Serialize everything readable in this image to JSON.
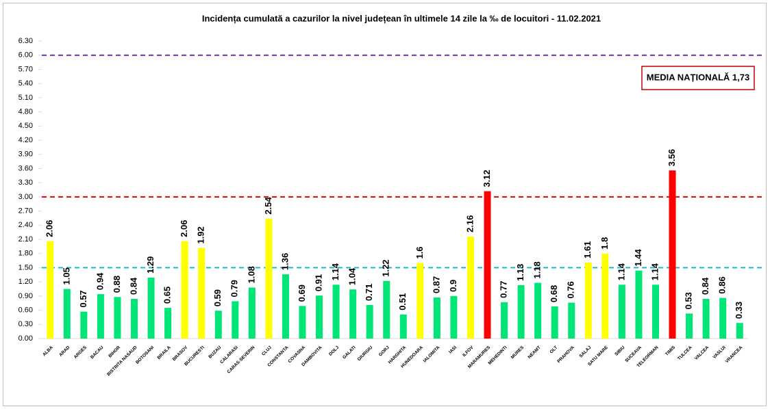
{
  "chart_data": {
    "type": "bar",
    "title": "Incidența cumulată a cazurilor la nivel județean în ultimele 14 zile la ‰ de locuitori - 11.02.2021",
    "categories": [
      "ALBA",
      "ARAD",
      "ARGES",
      "BACAU",
      "BIHOR",
      "BISTRITA NASAUD",
      "BOTOSANI",
      "BRAILA",
      "BRASOV",
      "BUCURESTI",
      "BUZAU",
      "CALARASI",
      "CARAS-SEVERIN",
      "CLUJ",
      "CONSTANTA",
      "COVASNA",
      "DAMBOVITA",
      "DOLJ",
      "GALATI",
      "GIURGIU",
      "GORJ",
      "HARGHITA",
      "HUNEDOARA",
      "IALOMITA",
      "IASI",
      "ILFOV",
      "MARAMURES",
      "MEHEDINTI",
      "MURES",
      "NEAMT",
      "OLT",
      "PRAHOVA",
      "SALAJ",
      "SATU MARE",
      "SIBIU",
      "SUCEAVA",
      "TELEORMAN",
      "TIMIS",
      "TULCEA",
      "VALCEA",
      "VASLUI",
      "VRANCEA"
    ],
    "values": [
      2.06,
      1.05,
      0.57,
      0.94,
      0.88,
      0.84,
      1.29,
      0.65,
      2.06,
      1.92,
      0.59,
      0.79,
      1.08,
      2.54,
      1.36,
      0.69,
      0.91,
      1.14,
      1.04,
      0.71,
      1.22,
      0.51,
      1.6,
      0.87,
      0.9,
      2.16,
      3.12,
      0.77,
      1.13,
      1.18,
      0.68,
      0.76,
      1.61,
      1.8,
      1.14,
      1.44,
      1.14,
      3.56,
      0.53,
      0.84,
      0.86,
      0.33
    ],
    "colors": [
      "#ffff00",
      "#00e676",
      "#00e676",
      "#00e676",
      "#00e676",
      "#00e676",
      "#00e676",
      "#00e676",
      "#ffff00",
      "#ffff00",
      "#00e676",
      "#00e676",
      "#00e676",
      "#ffff00",
      "#00e676",
      "#00e676",
      "#00e676",
      "#00e676",
      "#00e676",
      "#00e676",
      "#00e676",
      "#00e676",
      "#ffff00",
      "#00e676",
      "#00e676",
      "#ffff00",
      "#ff0000",
      "#00e676",
      "#00e676",
      "#00e676",
      "#00e676",
      "#00e676",
      "#ffff00",
      "#ffff00",
      "#00e676",
      "#00e676",
      "#00e676",
      "#ff0000",
      "#00e676",
      "#00e676",
      "#00e676",
      "#00e676"
    ],
    "ylim": [
      0,
      6.3
    ],
    "yticks": [
      {
        "value": 0,
        "label": "0.00"
      },
      {
        "value": 0.3,
        "label": "0.30"
      },
      {
        "value": 0.6,
        "label": "0.60"
      },
      {
        "value": 0.9,
        "label": "0.90"
      },
      {
        "value": 1.2,
        "label": "1.20"
      },
      {
        "value": 1.5,
        "label": "1.50"
      },
      {
        "value": 1.8,
        "label": "1.80"
      },
      {
        "value": 2.1,
        "label": "2.10"
      },
      {
        "value": 2.4,
        "label": "2.40"
      },
      {
        "value": 2.7,
        "label": "2.70"
      },
      {
        "value": 3,
        "label": "3.00"
      },
      {
        "value": 3.3,
        "label": "3.30"
      },
      {
        "value": 3.6,
        "label": "3.60"
      },
      {
        "value": 3.9,
        "label": "3.90"
      },
      {
        "value": 4.2,
        "label": "4.20"
      },
      {
        "value": 4.5,
        "label": "4.50"
      },
      {
        "value": 4.8,
        "label": "4.80"
      },
      {
        "value": 5.1,
        "label": "5.10"
      },
      {
        "value": 5.4,
        "label": "5.40"
      },
      {
        "value": 5.7,
        "label": "5.70"
      },
      {
        "value": 6,
        "label": "6.00"
      },
      {
        "value": 6.3,
        "label": "6.30"
      }
    ],
    "reference_lines": [
      {
        "value": 6,
        "color": "#7030a0"
      },
      {
        "value": 3,
        "color": "#e00000"
      },
      {
        "value": 1.5,
        "color": "#1fb8c8"
      }
    ],
    "annotation": "MEDIA NAȚIONALĂ 1,73"
  }
}
